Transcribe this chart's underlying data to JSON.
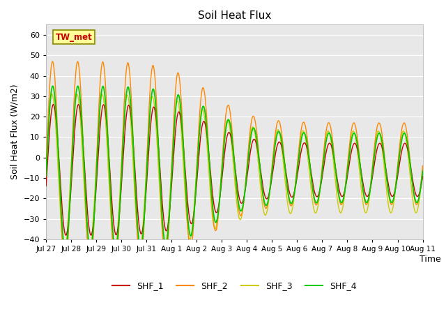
{
  "title": "Soil Heat Flux",
  "ylabel": "Soil Heat Flux (W/m2)",
  "xlabel": "Time",
  "ylim": [
    -40,
    65
  ],
  "yticks": [
    -40,
    -30,
    -20,
    -10,
    0,
    10,
    20,
    30,
    40,
    50,
    60
  ],
  "colors": {
    "SHF_1": "#cc0000",
    "SHF_2": "#ff8800",
    "SHF_3": "#cccc00",
    "SHF_4": "#00cc00"
  },
  "bg_color": "#e8e8e8",
  "annotation_text": "TW_met",
  "annotation_bg": "#ffff99",
  "annotation_text_color": "#cc0000",
  "annotation_border": "#888800",
  "xtick_labels": [
    "Jul 27",
    "Jul 28",
    "Jul 29",
    "Jul 30",
    "Jul 31",
    "Aug 1",
    "Aug 2",
    "Aug 3",
    "Aug 4",
    "Aug 5",
    "Aug 6",
    "Aug 7",
    "Aug 8",
    "Aug 9",
    "Aug 10",
    "Aug 11"
  ],
  "legend_entries": [
    "SHF_1",
    "SHF_2",
    "SHF_3",
    "SHF_4"
  ]
}
